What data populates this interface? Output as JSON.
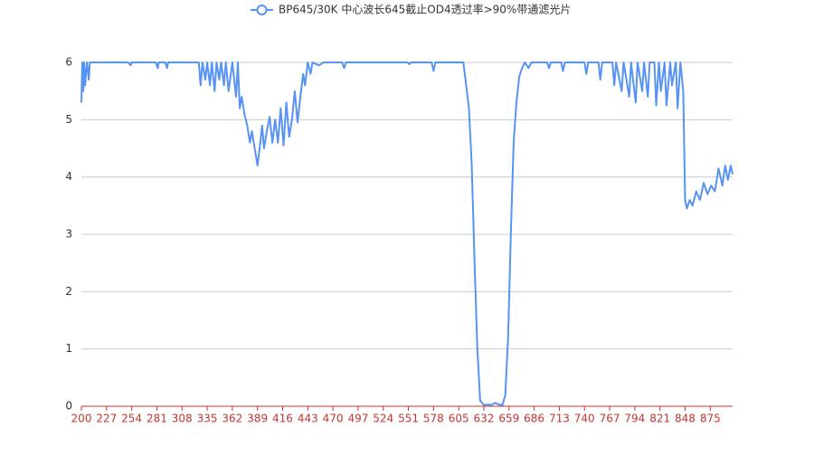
{
  "chart_data": {
    "type": "line",
    "x": [
      200,
      201,
      202,
      203,
      204,
      206,
      208,
      209,
      220,
      250,
      253,
      254,
      280,
      282,
      283,
      290,
      292,
      293,
      326,
      328,
      330,
      333,
      335,
      338,
      340,
      343,
      345,
      348,
      350,
      353,
      355,
      358,
      362,
      366,
      368,
      370,
      372,
      375,
      378,
      381,
      383,
      386,
      389,
      392,
      394,
      396,
      399,
      402,
      405,
      408,
      411,
      414,
      417,
      420,
      423,
      426,
      429,
      432,
      435,
      438,
      440,
      443,
      446,
      448,
      455,
      460,
      480,
      482,
      484,
      550,
      552,
      554,
      576,
      578,
      580,
      600,
      610,
      613,
      616,
      619,
      622,
      625,
      628,
      632,
      636,
      640,
      644,
      648,
      652,
      655,
      658,
      661,
      664,
      667,
      670,
      673,
      676,
      680,
      683,
      700,
      702,
      704,
      715,
      717,
      719,
      740,
      742,
      744,
      755,
      757,
      759,
      770,
      772,
      774,
      780,
      782,
      788,
      790,
      795,
      797,
      802,
      804,
      808,
      810,
      815,
      817,
      820,
      822,
      826,
      828,
      832,
      834,
      838,
      840,
      843,
      846,
      848,
      850,
      853,
      856,
      860,
      864,
      868,
      872,
      876,
      880,
      884,
      888,
      891,
      894,
      897,
      899
    ],
    "series": [
      {
        "name": "BP645/30K 中心波长645截止OD4透过率>90%带通滤光片",
        "color": "#5793f3",
        "values": [
          5.3,
          6,
          5.5,
          6,
          5.6,
          6,
          5.7,
          6,
          6,
          6,
          5.95,
          6,
          6,
          5.9,
          6,
          6,
          5.9,
          6,
          6,
          5.6,
          6,
          5.7,
          6,
          5.6,
          6,
          5.5,
          6,
          5.7,
          6,
          5.6,
          6,
          5.5,
          6,
          5.4,
          6,
          5.2,
          5.4,
          5.1,
          4.9,
          4.6,
          4.8,
          4.5,
          4.2,
          4.6,
          4.9,
          4.5,
          4.8,
          5.05,
          4.6,
          5.0,
          4.6,
          5.2,
          4.55,
          5.3,
          4.7,
          5.0,
          5.5,
          4.95,
          5.4,
          5.8,
          5.6,
          6,
          5.8,
          6,
          5.95,
          6,
          6,
          5.9,
          6,
          6,
          5.97,
          6,
          6,
          5.85,
          6,
          6,
          6,
          5.6,
          5.2,
          4.2,
          2.5,
          1.0,
          0.1,
          0.02,
          0.03,
          0.02,
          0.06,
          0.03,
          0.02,
          0.2,
          1.2,
          3.0,
          4.6,
          5.3,
          5.75,
          5.9,
          6,
          5.9,
          6,
          6,
          5.9,
          6,
          6,
          5.85,
          6,
          6,
          5.8,
          6,
          6,
          5.7,
          6,
          6,
          5.6,
          6,
          5.5,
          6,
          5.4,
          6,
          5.3,
          6,
          5.5,
          6,
          5.4,
          6,
          6,
          5.25,
          6,
          5.5,
          6,
          5.25,
          6,
          5.6,
          6,
          5.2,
          6,
          5.5,
          3.6,
          3.45,
          3.6,
          3.5,
          3.75,
          3.6,
          3.9,
          3.7,
          3.85,
          3.75,
          4.15,
          3.85,
          4.2,
          3.95,
          4.2,
          4.05
        ]
      }
    ],
    "xlim": [
      200,
      899
    ],
    "xticks": [
      200,
      227,
      254,
      281,
      308,
      335,
      362,
      389,
      416,
      443,
      470,
      497,
      524,
      551,
      578,
      605,
      632,
      659,
      686,
      713,
      740,
      767,
      794,
      821,
      848,
      875
    ],
    "ylim": [
      0,
      6
    ],
    "yticks": [
      0,
      1,
      2,
      3,
      4,
      5,
      6
    ],
    "grid": true
  }
}
